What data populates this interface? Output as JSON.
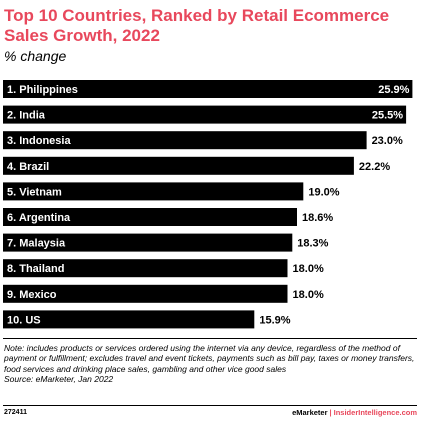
{
  "header": {
    "title": "Top 10 Countries, Ranked by Retail Ecommerce Sales Growth, 2022",
    "subtitle": "% change"
  },
  "chart_data": {
    "type": "bar",
    "orientation": "horizontal",
    "categories": [
      "1. Philippines",
      "2. India",
      "3. Indonesia",
      "4. Brazil",
      "5. Vietnam",
      "6. Argentina",
      "7. Malaysia",
      "8. Thailand",
      "9. Mexico",
      "10. US"
    ],
    "values": [
      25.9,
      25.5,
      23.0,
      22.2,
      19.0,
      18.6,
      18.3,
      18.0,
      18.0,
      15.9
    ],
    "value_labels": [
      "25.9%",
      "25.5%",
      "23.0%",
      "22.2%",
      "19.0%",
      "18.6%",
      "18.3%",
      "18.0%",
      "18.0%",
      "15.9%"
    ],
    "title": "Top 10 Countries, Ranked by Retail Ecommerce Sales Growth, 2022",
    "subtitle": "% change",
    "xlabel": "",
    "ylabel": "",
    "xlim": [
      0,
      26
    ],
    "grid": false,
    "legend": "none",
    "bar_color": "#000000",
    "accent_color": "#e8485c"
  },
  "footnote": {
    "note": "Note: includes products or services ordered using the internet via any device, regardless of the method of payment or fulfillment; excludes travel and event tickets, payments such as bill pay, taxes or money transfers, food services and drinking place sales, gambling and other vice good sales",
    "source": "Source: eMarketer, Jan 2022"
  },
  "footer": {
    "chart_id": "272411",
    "brand": "eMarketer",
    "separator": "|",
    "domain": "InsiderIntelligence.com"
  }
}
